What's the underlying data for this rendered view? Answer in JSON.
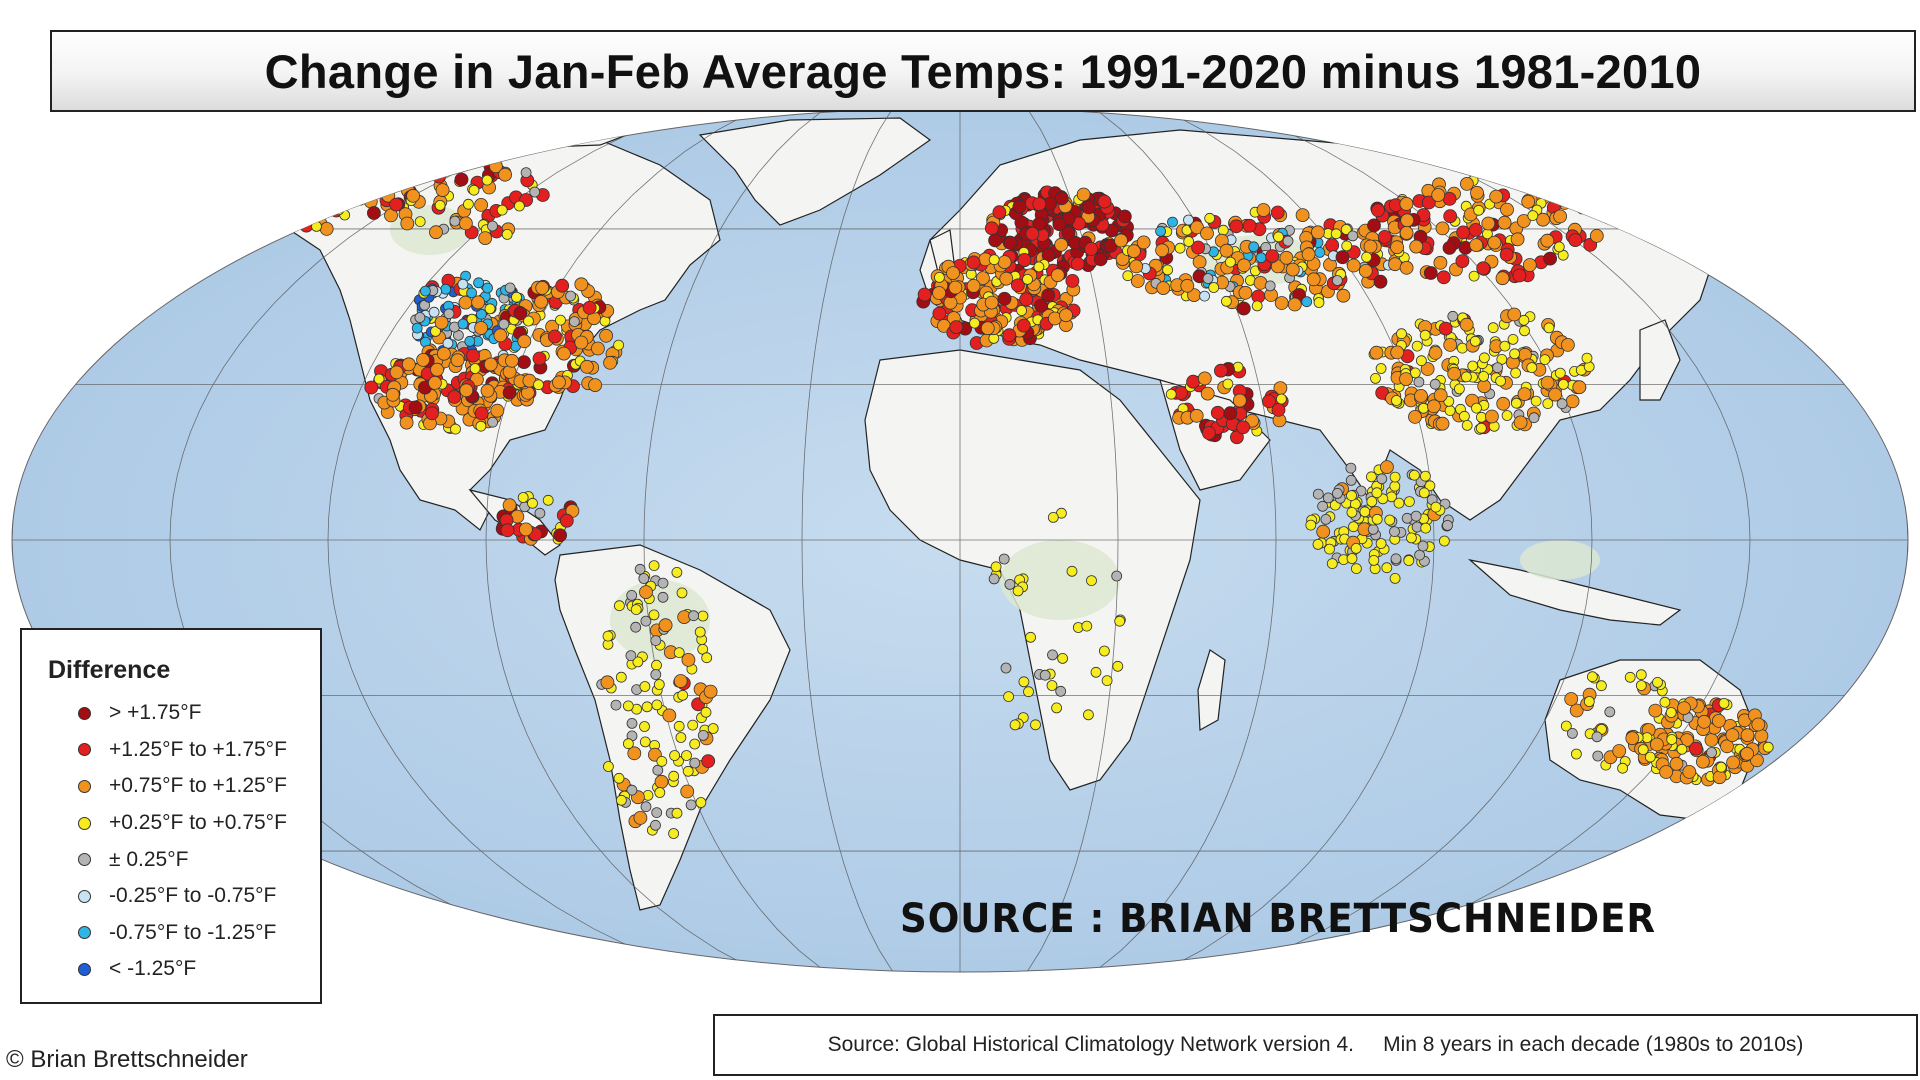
{
  "title": "Change in Jan-Feb Average Temps: 1991-2020 minus 1981-2010",
  "legend": {
    "title": "Difference",
    "items": [
      {
        "label": "> +1.75°F",
        "color": "#a30d14"
      },
      {
        "label": "+1.25°F to +1.75°F",
        "color": "#e3201f"
      },
      {
        "label": "+0.75°F to +1.25°F",
        "color": "#f2921e"
      },
      {
        "label": "+0.25°F to +0.75°F",
        "color": "#f7ec1f"
      },
      {
        "label": "± 0.25°F",
        "color": "#b4b4b4"
      },
      {
        "label": "-0.25°F to -0.75°F",
        "color": "#c6e2f3"
      },
      {
        "label": "-0.75°F to -1.25°F",
        "color": "#2fb4e6"
      },
      {
        "label": "< -1.25°F",
        "color": "#1f5fd2"
      }
    ]
  },
  "watermark": "SOURCE : BRIAN BRETTSCHNEIDER",
  "copyright": "© Brian Brettschneider",
  "source_note": "Source: Global Historical Climatology Network version 4.     Min 8 years in each decade (1980s to 2010s)",
  "colors": {
    "ocean": "#b9d3ec",
    "land": "#f4f4f2",
    "land_green": "#dce8d2",
    "border": "#222222",
    "graticule": "#555555"
  }
}
